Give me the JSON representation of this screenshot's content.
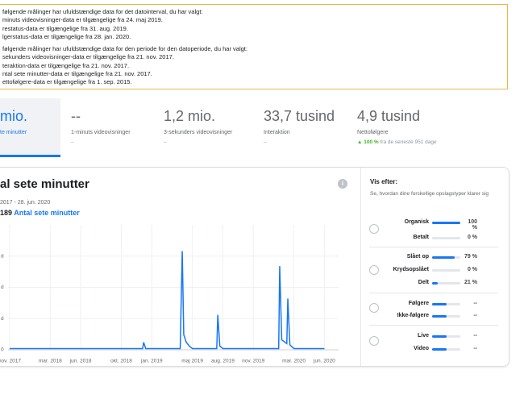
{
  "notice": {
    "groups": [
      {
        "heading": "følgende målinger har ufuldstændige data for det datointerval, du har valgt:",
        "items": [
          "minuts videovisninger-data er tilgængelige fra 24. maj 2019.",
          "restatus-data er tilgængelige fra 31. aug. 2019.",
          "lgerstatus-data er tilgængelige fra 28. jan. 2020."
        ]
      },
      {
        "heading": "følgende målinger har ufuldstændige data for den periode for den datoperiode, du har valgt:",
        "items": [
          "sekunders videovisninger-data er tilgængelige fra 21. nov. 2017.",
          "teraktion-data er tilgængelige fra 21. nov. 2017.",
          "ntal sete minutter-data er tilgængelige fra 21. nov. 2017.",
          "ettofølgere-data er tilgængelige fra 1. sep. 2015."
        ]
      }
    ]
  },
  "metrics": [
    {
      "value": "mio.",
      "label": "te minutter",
      "selected": true
    },
    {
      "value": "--",
      "label": "1-minuts videovisninger",
      "sub": "–"
    },
    {
      "value": "1,2 mio.",
      "label": "3-sekunders videovisninger",
      "sub": "–"
    },
    {
      "value": "33,7 tusind",
      "label": "Interaktion",
      "sub": "–"
    },
    {
      "value": "4,9 tusind",
      "label": "Nettofølgere",
      "change": "▲ 100 %",
      "sub": "fra de seneste 951 dage"
    }
  ],
  "chart_data": {
    "type": "line",
    "title": "al sete minutter",
    "date_range": "2017 - 28. jun. 2020",
    "total": "189",
    "x": [
      0,
      1,
      2,
      3,
      4,
      5,
      6,
      7,
      8,
      9,
      10,
      11,
      12,
      13.1,
      13.2,
      13.4,
      14,
      15,
      16,
      16.8,
      17,
      17.15,
      17.4,
      17.7,
      18,
      19,
      20,
      20.4,
      20.5,
      20.7,
      21,
      22,
      23,
      24,
      25,
      26.5,
      26.6,
      26.8,
      27.3,
      27.4,
      27.6,
      28,
      29,
      30,
      31
    ],
    "series": [
      {
        "name": "Antal sete minutter",
        "color": "#1877f2",
        "values": [
          1,
          1,
          1,
          1,
          1,
          1,
          1,
          1,
          1,
          1,
          1,
          1,
          1,
          1,
          6,
          1,
          1,
          1,
          1,
          1,
          79,
          12,
          6,
          3,
          1,
          1,
          1,
          1,
          28,
          3,
          1,
          1,
          1,
          1,
          1,
          1,
          67,
          8,
          5,
          41,
          4,
          1,
          1,
          1,
          1
        ]
      }
    ],
    "xlim": [
      -0.95,
      32.4
    ],
    "xticks": [
      {
        "value": 0,
        "label": "nov. 2017"
      },
      {
        "value": 4,
        "label": "mar. 2018"
      },
      {
        "value": 7,
        "label": "jun. 2018"
      },
      {
        "value": 11,
        "label": "okt. 2018"
      },
      {
        "value": 14,
        "label": "jan. 2019"
      },
      {
        "value": 18,
        "label": "maj 2019"
      },
      {
        "value": 21,
        "label": "aug. 2019"
      },
      {
        "value": 24,
        "label": "nov. 2019"
      },
      {
        "value": 28,
        "label": "mar. 2020"
      },
      {
        "value": 31,
        "label": "jun. 2020"
      }
    ],
    "ylim": [
      0,
      100
    ],
    "yticks": [
      0,
      {
        "value": 25,
        "label": "d"
      },
      {
        "value": 50,
        "label": "d"
      },
      {
        "value": 75,
        "label": "d"
      }
    ],
    "grid": true
  },
  "breakdown": {
    "title": "Vis efter:",
    "description": "Se, hvordan dine forskellige opslagstyper klarer sig",
    "groups": [
      [
        {
          "label": "Organisk",
          "value": 100,
          "value_label": "100 %"
        },
        {
          "label": "Betalt",
          "value": 0,
          "value_label": "0 %"
        }
      ],
      [
        {
          "label": "Slået op",
          "value": 79,
          "value_label": "79 %"
        },
        {
          "label": "Krydsopslået",
          "value": 0,
          "value_label": "0 %"
        },
        {
          "label": "Delt",
          "value": 21,
          "value_label": "21 %"
        }
      ],
      [
        {
          "label": "Følgere",
          "value": null,
          "value_label": "--"
        },
        {
          "label": "Ikke-følgere",
          "value": null,
          "value_label": "--"
        }
      ],
      [
        {
          "label": "Live",
          "value": null,
          "value_label": "--"
        },
        {
          "label": "Video",
          "value": null,
          "value_label": "--"
        }
      ]
    ]
  }
}
